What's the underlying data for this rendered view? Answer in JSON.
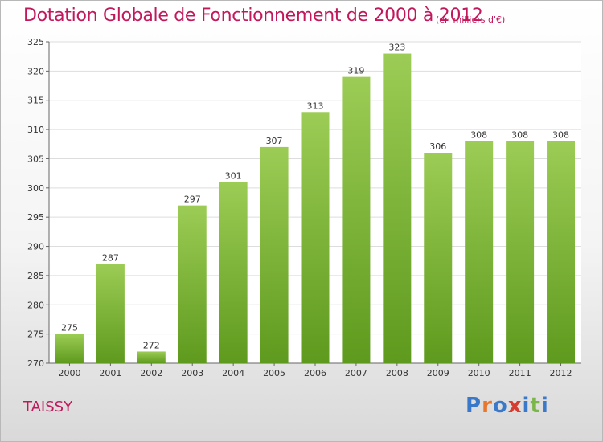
{
  "header": {
    "title": "Dotation Globale de Fonctionnement de 2000 à 2012",
    "unit": "(en milliers d'€)"
  },
  "footer": {
    "city": "TAISSY",
    "logo": {
      "letters": [
        "P",
        "r",
        "o",
        "x",
        "i",
        "t",
        "i"
      ],
      "colors": [
        "#3a78c9",
        "#e8772e",
        "#3a78c9",
        "#d63c2f",
        "#3a78c9",
        "#7ab648",
        "#3a78c9"
      ]
    }
  },
  "colors": {
    "bar_light": "#9ccc55",
    "bar_dark": "#5e9a1d",
    "accent": "#c2185b",
    "grid": "#dddddd"
  },
  "chart_data": {
    "type": "bar",
    "title": "Dotation Globale de Fonctionnement de 2000 à 2012",
    "subtitle": "(en milliers d'€)",
    "categories": [
      "2000",
      "2001",
      "2002",
      "2003",
      "2004",
      "2005",
      "2006",
      "2007",
      "2008",
      "2009",
      "2010",
      "2011",
      "2012"
    ],
    "values": [
      275,
      287,
      272,
      297,
      301,
      307,
      313,
      319,
      323,
      306,
      308,
      308,
      308
    ],
    "ylim": [
      270,
      325
    ],
    "yticks": [
      270,
      275,
      280,
      285,
      290,
      295,
      300,
      305,
      310,
      315,
      320,
      325
    ],
    "grid": true,
    "legend": "none"
  }
}
